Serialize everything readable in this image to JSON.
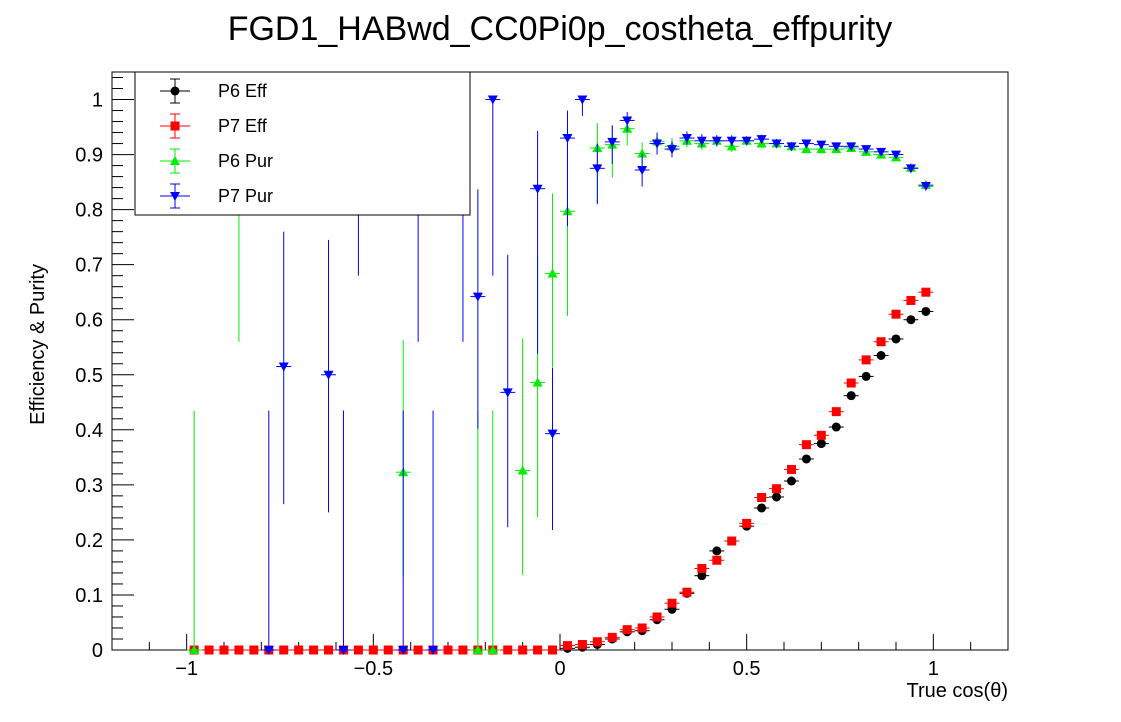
{
  "chart_data": {
    "type": "scatter",
    "title": "FGD1_HABwd_CC0Pi0p_costheta_effpurity",
    "xlabel": "True cos(θ)",
    "ylabel": "Efficiency & Purity",
    "xlim": [
      -1.2,
      1.2
    ],
    "ylim": [
      0,
      1.05
    ],
    "x_ticks": [
      -1,
      -0.5,
      0,
      0.5,
      1
    ],
    "x_tick_labels": [
      "−1",
      "−0.5",
      "0",
      "0.5",
      "1"
    ],
    "y_ticks": [
      0,
      0.1,
      0.2,
      0.3,
      0.4,
      0.5,
      0.6,
      0.7,
      0.8,
      0.9,
      1
    ],
    "y_tick_labels": [
      "0",
      "0.1",
      "0.2",
      "0.3",
      "0.4",
      "0.5",
      "0.6",
      "0.7",
      "0.8",
      "0.9",
      "1"
    ],
    "grid": false,
    "legend_position": "top-left",
    "series": [
      {
        "name": "P6 Eff",
        "color": "#000000",
        "marker": "circle",
        "points": [
          [
            -0.98,
            0
          ],
          [
            -0.94,
            0
          ],
          [
            -0.9,
            0
          ],
          [
            -0.86,
            0
          ],
          [
            -0.82,
            0
          ],
          [
            -0.78,
            0
          ],
          [
            -0.74,
            0
          ],
          [
            -0.7,
            0
          ],
          [
            -0.66,
            0
          ],
          [
            -0.62,
            0
          ],
          [
            -0.58,
            0
          ],
          [
            -0.54,
            0
          ],
          [
            -0.5,
            0
          ],
          [
            -0.46,
            0
          ],
          [
            -0.42,
            0
          ],
          [
            -0.38,
            0
          ],
          [
            -0.34,
            0
          ],
          [
            -0.3,
            0
          ],
          [
            -0.26,
            0
          ],
          [
            -0.22,
            0
          ],
          [
            -0.18,
            0
          ],
          [
            -0.14,
            0
          ],
          [
            -0.1,
            0
          ],
          [
            -0.06,
            0
          ],
          [
            -0.02,
            0
          ],
          [
            0.02,
            0.003
          ],
          [
            0.06,
            0.005
          ],
          [
            0.1,
            0.01
          ],
          [
            0.14,
            0.02
          ],
          [
            0.18,
            0.033
          ],
          [
            0.22,
            0.035
          ],
          [
            0.26,
            0.055
          ],
          [
            0.3,
            0.074
          ],
          [
            0.34,
            0.103
          ],
          [
            0.38,
            0.135
          ],
          [
            0.42,
            0.18
          ],
          [
            0.46,
            0.198
          ],
          [
            0.5,
            0.225
          ],
          [
            0.54,
            0.258
          ],
          [
            0.58,
            0.278
          ],
          [
            0.62,
            0.307
          ],
          [
            0.66,
            0.347
          ],
          [
            0.7,
            0.375
          ],
          [
            0.74,
            0.405
          ],
          [
            0.78,
            0.462
          ],
          [
            0.82,
            0.497
          ],
          [
            0.86,
            0.535
          ],
          [
            0.9,
            0.565
          ],
          [
            0.94,
            0.6
          ],
          [
            0.98,
            0.615
          ]
        ]
      },
      {
        "name": "P7 Eff",
        "color": "#ff0000",
        "marker": "square",
        "points": [
          [
            -0.98,
            0
          ],
          [
            -0.94,
            0
          ],
          [
            -0.9,
            0
          ],
          [
            -0.86,
            0
          ],
          [
            -0.82,
            0
          ],
          [
            -0.78,
            0
          ],
          [
            -0.74,
            0
          ],
          [
            -0.7,
            0
          ],
          [
            -0.66,
            0
          ],
          [
            -0.62,
            0
          ],
          [
            -0.58,
            0
          ],
          [
            -0.54,
            0
          ],
          [
            -0.5,
            0
          ],
          [
            -0.46,
            0
          ],
          [
            -0.42,
            0
          ],
          [
            -0.38,
            0
          ],
          [
            -0.34,
            0
          ],
          [
            -0.3,
            0
          ],
          [
            -0.26,
            0
          ],
          [
            -0.22,
            0
          ],
          [
            -0.18,
            0
          ],
          [
            -0.14,
            0
          ],
          [
            -0.1,
            0
          ],
          [
            -0.06,
            0
          ],
          [
            -0.02,
            0
          ],
          [
            0.02,
            0.008
          ],
          [
            0.06,
            0.01
          ],
          [
            0.1,
            0.015
          ],
          [
            0.14,
            0.023
          ],
          [
            0.18,
            0.037
          ],
          [
            0.22,
            0.04
          ],
          [
            0.26,
            0.06
          ],
          [
            0.3,
            0.085
          ],
          [
            0.34,
            0.105
          ],
          [
            0.38,
            0.148
          ],
          [
            0.42,
            0.163
          ],
          [
            0.46,
            0.198
          ],
          [
            0.5,
            0.23
          ],
          [
            0.54,
            0.277
          ],
          [
            0.58,
            0.293
          ],
          [
            0.62,
            0.328
          ],
          [
            0.66,
            0.373
          ],
          [
            0.7,
            0.39
          ],
          [
            0.74,
            0.433
          ],
          [
            0.78,
            0.485
          ],
          [
            0.82,
            0.527
          ],
          [
            0.86,
            0.56
          ],
          [
            0.9,
            0.61
          ],
          [
            0.94,
            0.635
          ],
          [
            0.98,
            0.65
          ]
        ]
      },
      {
        "name": "P6 Pur",
        "color": "#00ee00",
        "marker": "triangle-up",
        "points": [
          [
            -0.98,
            0,
            0,
            0.435
          ],
          [
            -0.86,
            1.0,
            0.44,
            0
          ],
          [
            -0.42,
            0.323,
            0.19,
            0.24
          ],
          [
            -0.22,
            0,
            0,
            0.435
          ],
          [
            -0.18,
            0,
            0,
            0.435
          ],
          [
            -0.1,
            0.326,
            0.19,
            0.24
          ],
          [
            -0.06,
            0.486,
            0.245,
            0.23
          ],
          [
            -0.02,
            0.684,
            0.17,
            0.145
          ],
          [
            0.02,
            0.797,
            0.19,
            0.15
          ],
          [
            0.1,
            0.912,
            0.1,
            0.045
          ],
          [
            0.14,
            0.918,
            0.06,
            0.035
          ],
          [
            0.18,
            0.947,
            0.03,
            0.02
          ],
          [
            0.22,
            0.902,
            0.02,
            0.02
          ],
          [
            0.26,
            0.924,
            0.015,
            0.015
          ],
          [
            0.3,
            0.915,
            0.015,
            0.015
          ],
          [
            0.34,
            0.925,
            0.012,
            0.012
          ],
          [
            0.38,
            0.92,
            0.012,
            0.012
          ],
          [
            0.42,
            0.925,
            0.01,
            0.01
          ],
          [
            0.46,
            0.915,
            0.01,
            0.01
          ],
          [
            0.5,
            0.925,
            0.008,
            0.008
          ],
          [
            0.54,
            0.92,
            0.008,
            0.008
          ],
          [
            0.58,
            0.92,
            0.008,
            0.008
          ],
          [
            0.62,
            0.915,
            0.007,
            0.007
          ],
          [
            0.66,
            0.91,
            0.007,
            0.007
          ],
          [
            0.7,
            0.91,
            0.007,
            0.007
          ],
          [
            0.74,
            0.91,
            0.007,
            0.007
          ],
          [
            0.78,
            0.912,
            0.006,
            0.006
          ],
          [
            0.82,
            0.905,
            0.006,
            0.006
          ],
          [
            0.86,
            0.9,
            0.006,
            0.006
          ],
          [
            0.9,
            0.895,
            0.006,
            0.006
          ],
          [
            0.94,
            0.876,
            0.006,
            0.006
          ],
          [
            0.98,
            0.845,
            0.006,
            0.006
          ]
        ]
      },
      {
        "name": "P7 Pur",
        "color": "#0000ff",
        "marker": "triangle-down",
        "points": [
          [
            -0.78,
            0,
            0,
            0.435
          ],
          [
            -0.74,
            0.515,
            0.25,
            0.245
          ],
          [
            -0.62,
            0.5,
            0.25,
            0.245
          ],
          [
            -0.58,
            0,
            0,
            0.435
          ],
          [
            -0.54,
            1.0,
            0.32,
            0
          ],
          [
            -0.42,
            0,
            0,
            0.435
          ],
          [
            -0.38,
            1.0,
            0.44,
            0
          ],
          [
            -0.34,
            0,
            0,
            0.435
          ],
          [
            -0.26,
            1.0,
            0.44,
            0
          ],
          [
            -0.22,
            0.642,
            0.24,
            0.195
          ],
          [
            -0.18,
            1.0,
            0.32,
            0
          ],
          [
            -0.14,
            0.468,
            0.245,
            0.25
          ],
          [
            -0.06,
            0.838,
            0.3,
            0.105
          ],
          [
            -0.02,
            0.393,
            0.175,
            0.12
          ],
          [
            0.02,
            0.93,
            0.16,
            0.05
          ],
          [
            0.06,
            1.0,
            0.03,
            0
          ],
          [
            0.1,
            0.875,
            0.065,
            0.045
          ],
          [
            0.14,
            0.923,
            0.04,
            0.03
          ],
          [
            0.18,
            0.962,
            0.02,
            0.015
          ],
          [
            0.22,
            0.872,
            0.03,
            0.03
          ],
          [
            0.26,
            0.92,
            0.02,
            0.02
          ],
          [
            0.3,
            0.91,
            0.015,
            0.015
          ],
          [
            0.34,
            0.93,
            0.012,
            0.012
          ],
          [
            0.38,
            0.925,
            0.012,
            0.012
          ],
          [
            0.42,
            0.925,
            0.01,
            0.01
          ],
          [
            0.46,
            0.925,
            0.01,
            0.01
          ],
          [
            0.5,
            0.925,
            0.008,
            0.008
          ],
          [
            0.54,
            0.928,
            0.008,
            0.008
          ],
          [
            0.58,
            0.92,
            0.008,
            0.008
          ],
          [
            0.62,
            0.915,
            0.007,
            0.007
          ],
          [
            0.66,
            0.92,
            0.007,
            0.007
          ],
          [
            0.7,
            0.918,
            0.007,
            0.007
          ],
          [
            0.74,
            0.915,
            0.007,
            0.007
          ],
          [
            0.78,
            0.915,
            0.006,
            0.006
          ],
          [
            0.82,
            0.91,
            0.006,
            0.006
          ],
          [
            0.86,
            0.905,
            0.006,
            0.006
          ],
          [
            0.9,
            0.9,
            0.006,
            0.006
          ],
          [
            0.94,
            0.875,
            0.006,
            0.006
          ],
          [
            0.98,
            0.843,
            0.006,
            0.006
          ]
        ]
      }
    ]
  }
}
